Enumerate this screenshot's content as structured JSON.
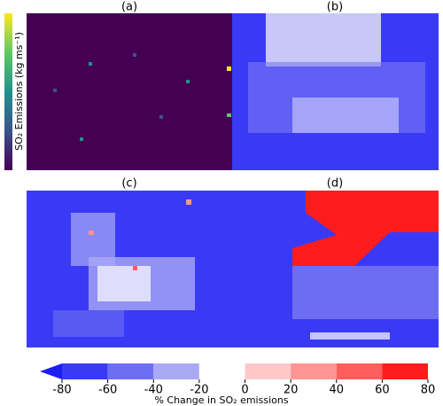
{
  "chart_data": {
    "type": "colorbar",
    "panel_titles": [
      "(a)",
      "(b)",
      "(c)",
      "(d)"
    ],
    "emissions_label": "SO₂ Emissions (kg ms⁻¹)",
    "xlabel": "% Change in SO₂ emissions",
    "xlim": [
      -80,
      80
    ],
    "xticks": [
      -80,
      -60,
      -40,
      -20,
      0,
      20,
      40,
      60,
      80
    ],
    "colors": [
      "#3a3af6",
      "#6e6ef4",
      "#a9a9f6",
      "#ffffff",
      "#ffc9c9",
      "#ff9494",
      "#ff5c5c",
      "#ff1c1c"
    ],
    "extend_color": "#1e1ef2"
  }
}
